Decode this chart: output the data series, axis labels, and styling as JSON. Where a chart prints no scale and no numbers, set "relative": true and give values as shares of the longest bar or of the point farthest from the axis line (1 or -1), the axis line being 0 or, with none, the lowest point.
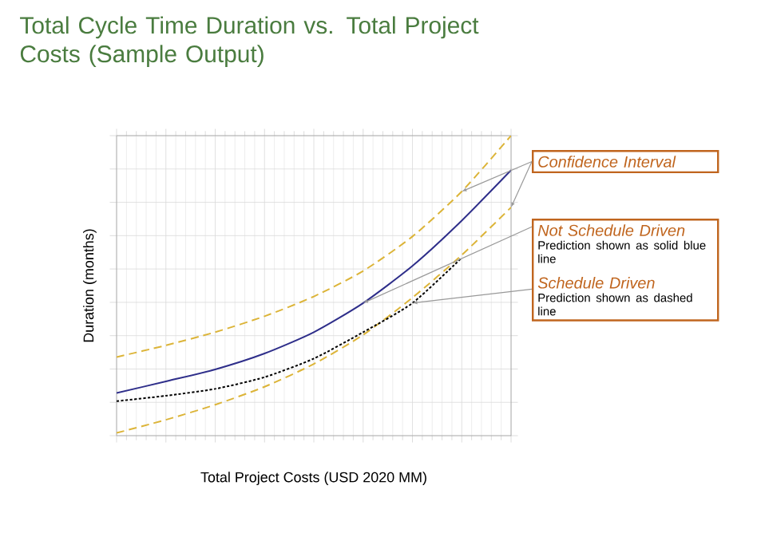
{
  "chart_data": {
    "type": "line",
    "title": "Total Cycle Time Duration vs. Total Project Costs (Sample Output)",
    "xlabel": "Total Project Costs (USD 2020 MM)",
    "ylabel": "Duration (months)",
    "categories": [
      null,
      null,
      null,
      null,
      null,
      null,
      null,
      null,
      null
    ],
    "relative": true,
    "grid": true,
    "marker": "none",
    "series": [
      {
        "color": "#dcb438",
        "line_style": "dashed",
        "values": [
          0.262,
          0.301,
          0.345,
          0.398,
          0.464,
          0.549,
          0.664,
          0.814,
          1
        ]
      },
      {
        "color": "#2e2e8a",
        "line_style": "solid",
        "values": [
          0.142,
          0.181,
          0.221,
          0.274,
          0.345,
          0.442,
          0.566,
          0.717,
          0.885
        ]
      },
      {
        "color": "#dcb438",
        "line_style": "dashed",
        "values": [
          0.009,
          0.053,
          0.103,
          0.163,
          0.239,
          0.336,
          0.46,
          0.602,
          0.761
        ]
      },
      {
        "color": "#000000",
        "line_style": "dotted",
        "values": [
          0.115,
          0.133,
          0.156,
          0.195,
          0.257,
          0.345,
          0.442,
          0.593,
          null
        ]
      }
    ],
    "annotations": [
      "*Confidence Interval*",
      "*Not Schedule Driven*",
      "Prediction shown as solid blue line",
      "*Schedule Driven*",
      "Prediction shown as dashed line"
    ]
  }
}
